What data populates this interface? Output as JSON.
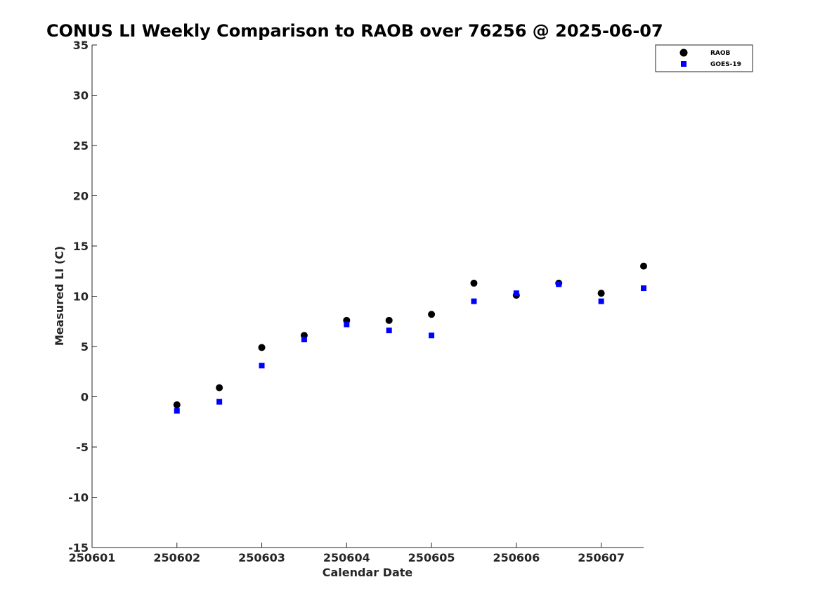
{
  "chart_data": {
    "type": "scatter",
    "title": "CONUS LI Weekly Comparison to RAOB over 76256 @ 2025-06-07",
    "xlabel": "Calendar Date",
    "ylabel": "Measured LI (C)",
    "xlim": [
      1,
      7.5
    ],
    "ylim": [
      -15,
      35
    ],
    "x_ticks": [
      1,
      2,
      3,
      4,
      5,
      6,
      7
    ],
    "x_tick_labels": [
      "250601",
      "250602",
      "250603",
      "250604",
      "250605",
      "250606",
      "250607"
    ],
    "y_ticks": [
      -15,
      -10,
      -5,
      0,
      5,
      10,
      15,
      20,
      25,
      30,
      35
    ],
    "y_tick_labels": [
      "-15",
      "-10",
      "-5",
      "0",
      "5",
      "10",
      "15",
      "20",
      "25",
      "30",
      "35"
    ],
    "grid": false,
    "legend_position": "top-right",
    "x": [
      2,
      2.5,
      3,
      3.5,
      4,
      4.5,
      5,
      5.5,
      6,
      6.5,
      7,
      7.5
    ],
    "series": [
      {
        "name": "RAOB",
        "marker": "circle",
        "color": "#000000",
        "values": [
          -0.8,
          0.9,
          4.9,
          6.1,
          7.6,
          7.6,
          8.2,
          11.3,
          10.1,
          11.3,
          10.3,
          13.0
        ]
      },
      {
        "name": "GOES-19",
        "marker": "square",
        "color": "#0000ff",
        "values": [
          -1.4,
          -0.5,
          3.1,
          5.7,
          7.2,
          6.6,
          6.1,
          9.5,
          10.3,
          11.2,
          9.5,
          10.8
        ]
      }
    ]
  }
}
